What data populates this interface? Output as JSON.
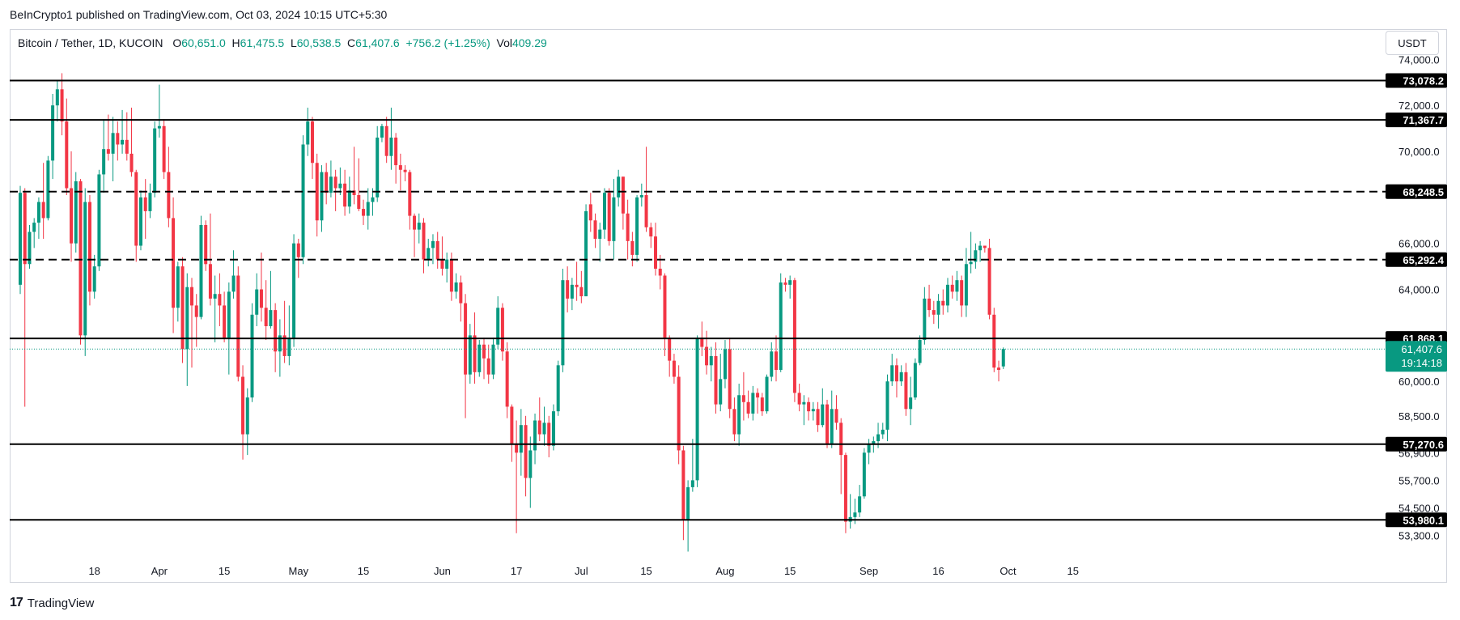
{
  "header": {
    "published": "BeInCrypto1 published on TradingView.com, Oct 03, 2024 10:15 UTC+5:30"
  },
  "legend": {
    "symbol": "Bitcoin / Tether, 1D, KUCOIN",
    "o_label": "O",
    "o_value": "60,651.0",
    "h_label": "H",
    "h_value": "61,475.5",
    "l_label": "L",
    "l_value": "60,538.5",
    "c_label": "C",
    "c_value": "61,407.6",
    "change": "+756.2 (+1.25%)",
    "vol_label": "Vol",
    "vol_value": "409.29"
  },
  "currency_button": "USDT",
  "footer": {
    "logo": "17",
    "brand": "TradingView"
  },
  "chart_data": {
    "type": "candlestick",
    "title": "Bitcoin / Tether, 1D, KUCOIN",
    "ylim": [
      52300,
      74400
    ],
    "y_ticks": [
      "74,000.0",
      "72,000.0",
      "70,000.0",
      "66,000.0",
      "64,000.0",
      "60,000.0",
      "58,500.0",
      "56,900.0",
      "55,700.0",
      "54,500.0",
      "53,300.0"
    ],
    "x_ticks": [
      {
        "label": "18",
        "day": 17
      },
      {
        "label": "Apr",
        "day": 31
      },
      {
        "label": "15",
        "day": 45
      },
      {
        "label": "May",
        "day": 61
      },
      {
        "label": "15",
        "day": 75
      },
      {
        "label": "Jun",
        "day": 92
      },
      {
        "label": "17",
        "day": 108
      },
      {
        "label": "Jul",
        "day": 122
      },
      {
        "label": "15",
        "day": 136
      },
      {
        "label": "Aug",
        "day": 153
      },
      {
        "label": "15",
        "day": 167
      },
      {
        "label": "Sep",
        "day": 184
      },
      {
        "label": "16",
        "day": 199
      },
      {
        "label": "Oct",
        "day": 214
      },
      {
        "label": "15",
        "day": 228
      }
    ],
    "levels": [
      {
        "label": "73,078.2",
        "value": 73078.2,
        "style": "solid"
      },
      {
        "label": "71,367.7",
        "value": 71367.7,
        "style": "solid"
      },
      {
        "label": "68,248.5",
        "value": 68248.5,
        "style": "dashed"
      },
      {
        "label": "65,292.4",
        "value": 65292.4,
        "style": "dashed"
      },
      {
        "label": "61,868.1",
        "value": 61868.1,
        "style": "solid"
      },
      {
        "label": "57,270.6",
        "value": 57270.6,
        "style": "solid"
      },
      {
        "label": "53,980.1",
        "value": 53980.1,
        "style": "solid"
      }
    ],
    "last_price": {
      "label": "61,407.6",
      "value": 61407.6,
      "countdown": "19:14:18",
      "color": "#089981"
    },
    "first_day": 1,
    "candles": [
      [
        64200,
        68500,
        63800,
        68200
      ],
      [
        68200,
        68400,
        58900,
        65100
      ],
      [
        65100,
        66800,
        64900,
        66500
      ],
      [
        66500,
        67100,
        65800,
        66900
      ],
      [
        66900,
        68000,
        66200,
        67800
      ],
      [
        67800,
        69500,
        66200,
        67100
      ],
      [
        67100,
        69800,
        67000,
        69600
      ],
      [
        69600,
        72500,
        68800,
        72000
      ],
      [
        72000,
        73100,
        71300,
        72700
      ],
      [
        72700,
        73400,
        70700,
        71300
      ],
      [
        71300,
        72300,
        68100,
        68400
      ],
      [
        68400,
        70000,
        65200,
        66000
      ],
      [
        66000,
        69100,
        65600,
        68700
      ],
      [
        68700,
        68800,
        61600,
        62000
      ],
      [
        62000,
        68400,
        61100,
        67800
      ],
      [
        67800,
        68100,
        63300,
        63900
      ],
      [
        63900,
        65500,
        63600,
        65000
      ],
      [
        65000,
        69200,
        64800,
        69000
      ],
      [
        69000,
        71400,
        68200,
        70100
      ],
      [
        70100,
        71600,
        69600,
        69900
      ],
      [
        69900,
        71500,
        68700,
        70800
      ],
      [
        70800,
        71300,
        69600,
        70300
      ],
      [
        70300,
        71800,
        69900,
        70500
      ],
      [
        70500,
        71700,
        69600,
        69900
      ],
      [
        69900,
        71900,
        68900,
        69100
      ],
      [
        69100,
        69200,
        65200,
        65900
      ],
      [
        65900,
        68300,
        65700,
        68000
      ],
      [
        68000,
        68800,
        66200,
        67400
      ],
      [
        67400,
        68600,
        67100,
        68200
      ],
      [
        68200,
        71300,
        68000,
        71000
      ],
      [
        71000,
        72900,
        70600,
        71100
      ],
      [
        71100,
        71400,
        68800,
        69100
      ],
      [
        69100,
        70200,
        66700,
        67100
      ],
      [
        67100,
        68000,
        62100,
        63200
      ],
      [
        63200,
        65200,
        62600,
        65000
      ],
      [
        65000,
        65400,
        60800,
        61400
      ],
      [
        61400,
        64700,
        59800,
        64100
      ],
      [
        64100,
        64500,
        60600,
        63300
      ],
      [
        63300,
        63800,
        61500,
        62800
      ],
      [
        62800,
        67200,
        62700,
        66800
      ],
      [
        66800,
        67000,
        64800,
        65100
      ],
      [
        65100,
        67300,
        63300,
        63600
      ],
      [
        63600,
        64600,
        61700,
        63800
      ],
      [
        63800,
        64700,
        62400,
        63300
      ],
      [
        63300,
        63900,
        61700,
        61900
      ],
      [
        61900,
        64300,
        60300,
        63900
      ],
      [
        63900,
        65700,
        63600,
        64600
      ],
      [
        64600,
        65000,
        60000,
        60200
      ],
      [
        60200,
        60700,
        56600,
        57700
      ],
      [
        57700,
        59700,
        56800,
        59300
      ],
      [
        59300,
        63400,
        59100,
        62900
      ],
      [
        62900,
        64700,
        62400,
        64000
      ],
      [
        64000,
        65600,
        62600,
        63200
      ],
      [
        63200,
        64400,
        61800,
        62400
      ],
      [
        62400,
        64800,
        62300,
        63100
      ],
      [
        63100,
        63400,
        60400,
        61300
      ],
      [
        61300,
        62700,
        60200,
        62000
      ],
      [
        62000,
        63500,
        60800,
        61100
      ],
      [
        61100,
        63300,
        60700,
        61900
      ],
      [
        61900,
        66400,
        61500,
        66000
      ],
      [
        66000,
        66200,
        64500,
        65400
      ],
      [
        65400,
        70700,
        65100,
        70300
      ],
      [
        70300,
        71900,
        69800,
        71300
      ],
      [
        71300,
        71500,
        68800,
        69500
      ],
      [
        69500,
        69900,
        66300,
        67000
      ],
      [
        67000,
        69400,
        66500,
        69100
      ],
      [
        69100,
        69500,
        67700,
        68200
      ],
      [
        68200,
        69600,
        68000,
        68900
      ],
      [
        68900,
        69200,
        67400,
        68400
      ],
      [
        68400,
        69300,
        68100,
        68600
      ],
      [
        68600,
        69200,
        67200,
        67600
      ],
      [
        67600,
        68900,
        67300,
        68300
      ],
      [
        68300,
        70200,
        67700,
        68100
      ],
      [
        68100,
        69700,
        67400,
        67500
      ],
      [
        67500,
        67900,
        66800,
        67200
      ],
      [
        67200,
        68400,
        66600,
        67800
      ],
      [
        67800,
        68400,
        67200,
        68000
      ],
      [
        68000,
        71100,
        67800,
        70600
      ],
      [
        70600,
        71200,
        70400,
        71100
      ],
      [
        71100,
        71500,
        69500,
        69800
      ],
      [
        69800,
        71900,
        69200,
        70600
      ],
      [
        70600,
        70800,
        68600,
        69400
      ],
      [
        69400,
        69900,
        68300,
        69200
      ],
      [
        69200,
        69400,
        68700,
        69100
      ],
      [
        69100,
        69200,
        66600,
        67200
      ],
      [
        67200,
        67300,
        65400,
        66600
      ],
      [
        66600,
        67300,
        66000,
        66900
      ],
      [
        66900,
        67100,
        64700,
        65300
      ],
      [
        65300,
        66200,
        65000,
        65800
      ],
      [
        65800,
        66400,
        65100,
        66100
      ],
      [
        66100,
        66500,
        64900,
        65300
      ],
      [
        65300,
        66300,
        64600,
        64900
      ],
      [
        64900,
        65600,
        64300,
        65300
      ],
      [
        65300,
        65600,
        63500,
        63900
      ],
      [
        63900,
        64700,
        63600,
        64300
      ],
      [
        64300,
        64600,
        62600,
        63400
      ],
      [
        63400,
        63800,
        58400,
        60300
      ],
      [
        60300,
        62500,
        59900,
        62000
      ],
      [
        62000,
        63000,
        59900,
        60400
      ],
      [
        60400,
        61800,
        60200,
        61600
      ],
      [
        61600,
        61900,
        60100,
        61000
      ],
      [
        61000,
        61600,
        59900,
        60300
      ],
      [
        60300,
        61900,
        60100,
        61600
      ],
      [
        61600,
        63700,
        61400,
        63200
      ],
      [
        63200,
        63400,
        60900,
        61300
      ],
      [
        61300,
        61700,
        58400,
        58900
      ],
      [
        58900,
        59000,
        56500,
        57300
      ],
      [
        57300,
        58300,
        53400,
        56900
      ],
      [
        56900,
        58800,
        55900,
        58100
      ],
      [
        58100,
        58500,
        55000,
        55800
      ],
      [
        55800,
        57600,
        54500,
        57000
      ],
      [
        57000,
        58600,
        56400,
        58300
      ],
      [
        58300,
        59300,
        57400,
        57700
      ],
      [
        57700,
        58900,
        57200,
        58200
      ],
      [
        58200,
        58500,
        56700,
        57200
      ],
      [
        57200,
        59000,
        57000,
        58700
      ],
      [
        58700,
        60900,
        58500,
        60700
      ],
      [
        60700,
        64900,
        60400,
        64400
      ],
      [
        64400,
        65000,
        63000,
        63600
      ],
      [
        63600,
        64500,
        63100,
        64200
      ],
      [
        64200,
        65200,
        63500,
        64100
      ],
      [
        64100,
        64800,
        63400,
        63700
      ],
      [
        63700,
        67700,
        63700,
        67400
      ],
      [
        67700,
        68200,
        66500,
        67000
      ],
      [
        67000,
        67300,
        65800,
        66200
      ],
      [
        66200,
        66900,
        65200,
        66600
      ],
      [
        66600,
        68400,
        66200,
        68200
      ],
      [
        68200,
        68400,
        65900,
        66100
      ],
      [
        66100,
        68800,
        65300,
        68000
      ],
      [
        68000,
        69200,
        67600,
        68900
      ],
      [
        68900,
        68900,
        66600,
        67300
      ],
      [
        67300,
        67900,
        65300,
        66100
      ],
      [
        66100,
        66500,
        65000,
        65500
      ],
      [
        65500,
        68100,
        65200,
        68000
      ],
      [
        68000,
        68600,
        67600,
        68100
      ],
      [
        68100,
        70200,
        66500,
        66700
      ],
      [
        66700,
        66900,
        65800,
        66300
      ],
      [
        66300,
        66900,
        64600,
        64900
      ],
      [
        64900,
        65500,
        64000,
        64600
      ],
      [
        64600,
        64700,
        61100,
        61900
      ],
      [
        61900,
        62000,
        60200,
        60900
      ],
      [
        60900,
        61200,
        59900,
        60200
      ],
      [
        60200,
        60700,
        56400,
        57000
      ],
      [
        57000,
        57200,
        53100,
        54000
      ],
      [
        54000,
        55700,
        52600,
        55400
      ],
      [
        55400,
        57500,
        55200,
        55700
      ],
      [
        55700,
        62000,
        55400,
        61900
      ],
      [
        61900,
        62600,
        61100,
        61500
      ],
      [
        61500,
        62200,
        60300,
        60700
      ],
      [
        60700,
        61500,
        60000,
        61100
      ],
      [
        61100,
        61700,
        58600,
        59000
      ],
      [
        59000,
        61200,
        58700,
        60100
      ],
      [
        60100,
        61800,
        59700,
        61400
      ],
      [
        61400,
        61900,
        58400,
        58800
      ],
      [
        58800,
        59300,
        57400,
        57700
      ],
      [
        57700,
        59900,
        57200,
        59400
      ],
      [
        59400,
        60400,
        58300,
        59100
      ],
      [
        59100,
        59600,
        58400,
        58600
      ],
      [
        58600,
        59800,
        58300,
        59500
      ],
      [
        59500,
        59700,
        58600,
        59300
      ],
      [
        59300,
        59500,
        58500,
        58700
      ],
      [
        58700,
        60300,
        58600,
        60200
      ],
      [
        60200,
        61700,
        60000,
        61300
      ],
      [
        61300,
        62000,
        60000,
        60500
      ],
      [
        60500,
        64700,
        60400,
        64300
      ],
      [
        64300,
        64500,
        63900,
        64200
      ],
      [
        64200,
        64600,
        63600,
        64400
      ],
      [
        64400,
        64500,
        59100,
        59500
      ],
      [
        59500,
        59900,
        58700,
        59000
      ],
      [
        59000,
        59400,
        58100,
        59100
      ],
      [
        59100,
        59300,
        58300,
        58700
      ],
      [
        58700,
        59100,
        58300,
        58800
      ],
      [
        58800,
        59100,
        57800,
        58100
      ],
      [
        58100,
        59700,
        58000,
        59000
      ],
      [
        59000,
        59200,
        57100,
        57300
      ],
      [
        57300,
        59600,
        57100,
        58800
      ],
      [
        58800,
        59400,
        57900,
        58200
      ],
      [
        58200,
        58400,
        55100,
        56800
      ],
      [
        56800,
        56900,
        53400,
        53900
      ],
      [
        53900,
        55100,
        53600,
        54100
      ],
      [
        54100,
        54900,
        53800,
        54300
      ],
      [
        54300,
        55500,
        54100,
        55000
      ],
      [
        55000,
        57100,
        54900,
        56900
      ],
      [
        56900,
        57500,
        56400,
        57300
      ],
      [
        57300,
        57600,
        56900,
        57400
      ],
      [
        57400,
        58200,
        57100,
        57700
      ],
      [
        57700,
        58200,
        57500,
        57900
      ],
      [
        57900,
        60300,
        57400,
        60000
      ],
      [
        60000,
        61200,
        59800,
        60700
      ],
      [
        60700,
        61000,
        59300,
        60000
      ],
      [
        60000,
        60700,
        59800,
        60400
      ],
      [
        60400,
        60800,
        58500,
        58800
      ],
      [
        58800,
        60200,
        58100,
        59300
      ],
      [
        59300,
        61000,
        59200,
        60800
      ],
      [
        60800,
        62000,
        60700,
        61800
      ],
      [
        61800,
        64100,
        61600,
        63600
      ],
      [
        63600,
        64200,
        62800,
        63100
      ],
      [
        63100,
        63500,
        62500,
        62900
      ],
      [
        62900,
        63800,
        62300,
        63500
      ],
      [
        63500,
        64000,
        62900,
        63300
      ],
      [
        63300,
        64500,
        63000,
        64200
      ],
      [
        64200,
        64600,
        63600,
        63900
      ],
      [
        63900,
        64800,
        63500,
        64400
      ],
      [
        64400,
        64600,
        62800,
        63300
      ],
      [
        63300,
        65800,
        62800,
        65100
      ],
      [
        65100,
        66500,
        64700,
        65200
      ],
      [
        65200,
        66000,
        64900,
        65700
      ],
      [
        65700,
        66100,
        65200,
        65900
      ],
      [
        65900,
        65900,
        65600,
        65800
      ],
      [
        65800,
        66200,
        62700,
        62900
      ],
      [
        62900,
        63200,
        60400,
        60600
      ],
      [
        60600,
        60900,
        60000,
        60500
      ],
      [
        60651,
        61475.5,
        60538.5,
        61407.6
      ]
    ]
  }
}
